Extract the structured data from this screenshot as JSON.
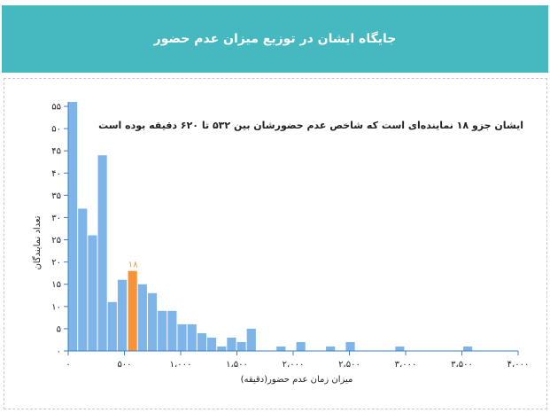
{
  "header": {
    "title": "جایگاه ایشان در توزیع میزان عدم حضور"
  },
  "colors": {
    "header_bg": "#45b8c0",
    "bar": "#7db4ea",
    "highlight_bar": "#f7943a",
    "axis": "#3e80c1",
    "text": "#222222"
  },
  "chart_data": {
    "type": "bar",
    "title": "",
    "annotation": "ایشان جزو ۱۸ نماینده‌ای است که شاخص عدم حضورشان بین ۵۳۲ تا ۶۲۰ دقیقه بوده است",
    "xlabel": "میزان زمان عدم حضور(دقیقه)",
    "ylabel": "تعداد نمایندگان",
    "xlim": [
      0,
      4000
    ],
    "ylim": [
      0,
      56
    ],
    "bin_width": 88,
    "x_ticks": [
      0,
      500,
      1000,
      1500,
      2000,
      2500,
      3000,
      3500,
      4000
    ],
    "x_tick_labels": [
      "۰",
      "۵۰۰",
      "۱،۰۰۰",
      "۱،۵۰۰",
      "۲،۰۰۰",
      "۲،۵۰۰",
      "۳،۰۰۰",
      "۳،۵۰۰",
      "۴،۰۰۰"
    ],
    "y_ticks": [
      0,
      5,
      10,
      15,
      20,
      25,
      30,
      35,
      40,
      45,
      50,
      55
    ],
    "y_tick_labels": [
      "۰",
      "۵",
      "۱۰",
      "۱۵",
      "۲۰",
      "۲۵",
      "۳۰",
      "۳۵",
      "۴۰",
      "۴۵",
      "۵۰",
      "۵۵"
    ],
    "bins": [
      {
        "x0": 0,
        "value": 56
      },
      {
        "x0": 88,
        "value": 32
      },
      {
        "x0": 176,
        "value": 26
      },
      {
        "x0": 264,
        "value": 44
      },
      {
        "x0": 352,
        "value": 11
      },
      {
        "x0": 440,
        "value": 16
      },
      {
        "x0": 532,
        "value": 18,
        "highlight": true
      },
      {
        "x0": 620,
        "value": 15
      },
      {
        "x0": 708,
        "value": 13
      },
      {
        "x0": 796,
        "value": 9
      },
      {
        "x0": 884,
        "value": 9
      },
      {
        "x0": 972,
        "value": 6
      },
      {
        "x0": 1060,
        "value": 6
      },
      {
        "x0": 1148,
        "value": 4
      },
      {
        "x0": 1236,
        "value": 3
      },
      {
        "x0": 1324,
        "value": 1
      },
      {
        "x0": 1412,
        "value": 3
      },
      {
        "x0": 1500,
        "value": 2
      },
      {
        "x0": 1588,
        "value": 5
      },
      {
        "x0": 1852,
        "value": 1
      },
      {
        "x0": 2028,
        "value": 2
      },
      {
        "x0": 2292,
        "value": 1
      },
      {
        "x0": 2468,
        "value": 2
      },
      {
        "x0": 2908,
        "value": 1
      },
      {
        "x0": 3512,
        "value": 1
      }
    ],
    "highlight_label": "۱۸"
  }
}
